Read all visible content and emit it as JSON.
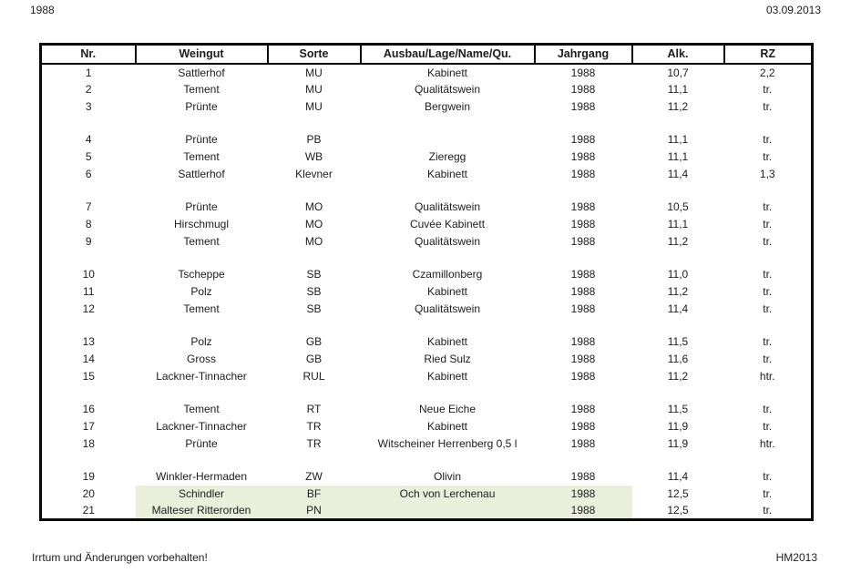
{
  "page": {
    "top_left": "1988",
    "top_right": "03.09.2013",
    "bottom_left": "Irrtum und Änderungen vorbehalten!",
    "bottom_right": "HM2013"
  },
  "table": {
    "columns": [
      "Nr.",
      "Weingut",
      "Sorte",
      "Ausbau/Lage/Name/Qu.",
      "Jahrgang",
      "Alk.",
      "RZ"
    ],
    "highlight_color": "#e9efdb",
    "border_color": "#0a0a0a",
    "rows": [
      {
        "nr": "1",
        "weingut": "Sattlerhof",
        "sorte": "MU",
        "ausbau": "Kabinett",
        "jahrgang": "1988",
        "alk": "10,7",
        "rz": "2,2",
        "highlight": false
      },
      {
        "nr": "2",
        "weingut": "Tement",
        "sorte": "MU",
        "ausbau": "Qualitätswein",
        "jahrgang": "1988",
        "alk": "11,1",
        "rz": "tr.",
        "highlight": false
      },
      {
        "nr": "3",
        "weingut": "Prünte",
        "sorte": "MU",
        "ausbau": "Bergwein",
        "jahrgang": "1988",
        "alk": "11,2",
        "rz": "tr.",
        "highlight": false
      },
      {
        "spacer": true
      },
      {
        "nr": "4",
        "weingut": "Prünte",
        "sorte": "PB",
        "ausbau": "",
        "jahrgang": "1988",
        "alk": "11,1",
        "rz": "tr.",
        "highlight": false
      },
      {
        "nr": "5",
        "weingut": "Tement",
        "sorte": "WB",
        "ausbau": "Zieregg",
        "jahrgang": "1988",
        "alk": "11,1",
        "rz": "tr.",
        "highlight": false
      },
      {
        "nr": "6",
        "weingut": "Sattlerhof",
        "sorte": "Klevner",
        "ausbau": "Kabinett",
        "jahrgang": "1988",
        "alk": "11,4",
        "rz": "1,3",
        "highlight": false
      },
      {
        "spacer": true
      },
      {
        "nr": "7",
        "weingut": "Prünte",
        "sorte": "MO",
        "ausbau": "Qualitätswein",
        "jahrgang": "1988",
        "alk": "10,5",
        "rz": "tr.",
        "highlight": false
      },
      {
        "nr": "8",
        "weingut": "Hirschmugl",
        "sorte": "MO",
        "ausbau": "Cuvée Kabinett",
        "jahrgang": "1988",
        "alk": "11,1",
        "rz": "tr.",
        "highlight": false
      },
      {
        "nr": "9",
        "weingut": "Tement",
        "sorte": "MO",
        "ausbau": "Qualitätswein",
        "jahrgang": "1988",
        "alk": "11,2",
        "rz": "tr.",
        "highlight": false
      },
      {
        "spacer": true
      },
      {
        "nr": "10",
        "weingut": "Tscheppe",
        "sorte": "SB",
        "ausbau": "Czamillonberg",
        "jahrgang": "1988",
        "alk": "11,0",
        "rz": "tr.",
        "highlight": false
      },
      {
        "nr": "11",
        "weingut": "Polz",
        "sorte": "SB",
        "ausbau": "Kabinett",
        "jahrgang": "1988",
        "alk": "11,2",
        "rz": "tr.",
        "highlight": false
      },
      {
        "nr": "12",
        "weingut": "Tement",
        "sorte": "SB",
        "ausbau": "Qualitätswein",
        "jahrgang": "1988",
        "alk": "11,4",
        "rz": "tr.",
        "highlight": false
      },
      {
        "spacer": true
      },
      {
        "nr": "13",
        "weingut": "Polz",
        "sorte": "GB",
        "ausbau": "Kabinett",
        "jahrgang": "1988",
        "alk": "11,5",
        "rz": "tr.",
        "highlight": false
      },
      {
        "nr": "14",
        "weingut": "Gross",
        "sorte": "GB",
        "ausbau": "Ried Sulz",
        "jahrgang": "1988",
        "alk": "11,6",
        "rz": "tr.",
        "highlight": false
      },
      {
        "nr": "15",
        "weingut": "Lackner-Tinnacher",
        "sorte": "RUL",
        "ausbau": "Kabinett",
        "jahrgang": "1988",
        "alk": "11,2",
        "rz": "htr.",
        "highlight": false
      },
      {
        "spacer": true
      },
      {
        "nr": "16",
        "weingut": "Tement",
        "sorte": "RT",
        "ausbau": "Neue Eiche",
        "jahrgang": "1988",
        "alk": "11,5",
        "rz": "tr.",
        "highlight": false
      },
      {
        "nr": "17",
        "weingut": "Lackner-Tinnacher",
        "sorte": "TR",
        "ausbau": "Kabinett",
        "jahrgang": "1988",
        "alk": "11,9",
        "rz": "tr.",
        "highlight": false
      },
      {
        "nr": "18",
        "weingut": "Prünte",
        "sorte": "TR",
        "ausbau": "Witscheiner Herrenberg 0,5 l",
        "jahrgang": "1988",
        "alk": "11,9",
        "rz": "htr.",
        "highlight": false
      },
      {
        "spacer": true
      },
      {
        "nr": "19",
        "weingut": "Winkler-Hermaden",
        "sorte": "ZW",
        "ausbau": "Olivin",
        "jahrgang": "1988",
        "alk": "11,4",
        "rz": "tr.",
        "highlight": false
      },
      {
        "nr": "20",
        "weingut": "Schindler",
        "sorte": "BF",
        "ausbau": "Och von Lerchenau",
        "jahrgang": "1988",
        "alk": "12,5",
        "rz": "tr.",
        "highlight": true
      },
      {
        "nr": "21",
        "weingut": "Malteser Ritterorden",
        "sorte": "PN",
        "ausbau": "",
        "jahrgang": "1988",
        "alk": "12,5",
        "rz": "tr.",
        "highlight": true
      }
    ]
  }
}
